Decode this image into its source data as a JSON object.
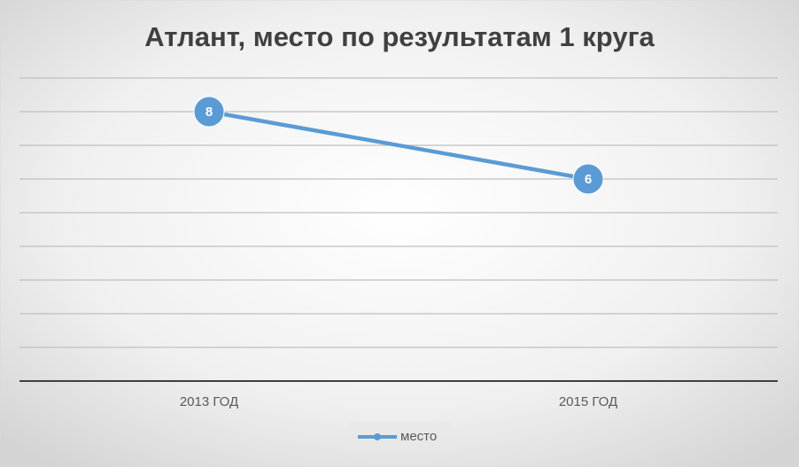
{
  "chart_data": {
    "type": "line",
    "title": "Атлант, место по результатам 1 круга",
    "categories": [
      "2013 ГОД",
      "2015 ГОД"
    ],
    "series": [
      {
        "name": "место",
        "color": "#5b9bd5",
        "values": [
          8,
          6
        ]
      }
    ],
    "ylim": [
      0,
      9
    ],
    "yticks": [
      0,
      1,
      2,
      3,
      4,
      5,
      6,
      7,
      8,
      9
    ],
    "grid": true,
    "legend": "bottom"
  }
}
